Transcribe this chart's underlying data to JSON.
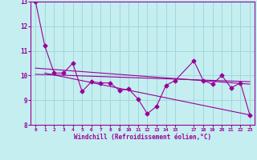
{
  "xlabel": "Windchill (Refroidissement éolien,°C)",
  "background_color": "#c5eef0",
  "grid_color": "#a0d8dc",
  "line_color": "#990099",
  "xlim": [
    -0.5,
    23.5
  ],
  "ylim": [
    8,
    13
  ],
  "yticks": [
    8,
    9,
    10,
    11,
    12,
    13
  ],
  "xtick_positions": [
    0,
    1,
    2,
    3,
    4,
    5,
    6,
    7,
    8,
    9,
    10,
    11,
    12,
    13,
    14,
    15,
    17,
    18,
    19,
    20,
    21,
    22,
    23
  ],
  "xtick_labels": [
    "0",
    "1",
    "2",
    "3",
    "4",
    "5",
    "6",
    "7",
    "8",
    "9",
    "10",
    "11",
    "12",
    "13",
    "14",
    "15",
    "17",
    "18",
    "19",
    "20",
    "21",
    "22",
    "23"
  ],
  "series1_x": [
    0,
    1,
    2,
    3,
    4,
    5,
    6,
    7,
    8,
    9,
    10,
    11,
    12,
    13,
    14,
    15,
    17,
    18,
    19,
    20,
    21,
    22,
    23
  ],
  "series1_y": [
    13.0,
    11.2,
    10.1,
    10.1,
    10.5,
    9.35,
    9.75,
    9.7,
    9.7,
    9.4,
    9.45,
    9.05,
    8.45,
    8.75,
    9.6,
    9.8,
    10.6,
    9.8,
    9.65,
    10.0,
    9.5,
    9.7,
    8.4
  ],
  "series2_x": [
    0,
    23
  ],
  "series2_y": [
    10.3,
    9.65
  ],
  "series3_x": [
    0,
    23
  ],
  "series3_y": [
    10.05,
    9.75
  ],
  "series4_x": [
    1,
    23
  ],
  "series4_y": [
    10.1,
    8.4
  ]
}
